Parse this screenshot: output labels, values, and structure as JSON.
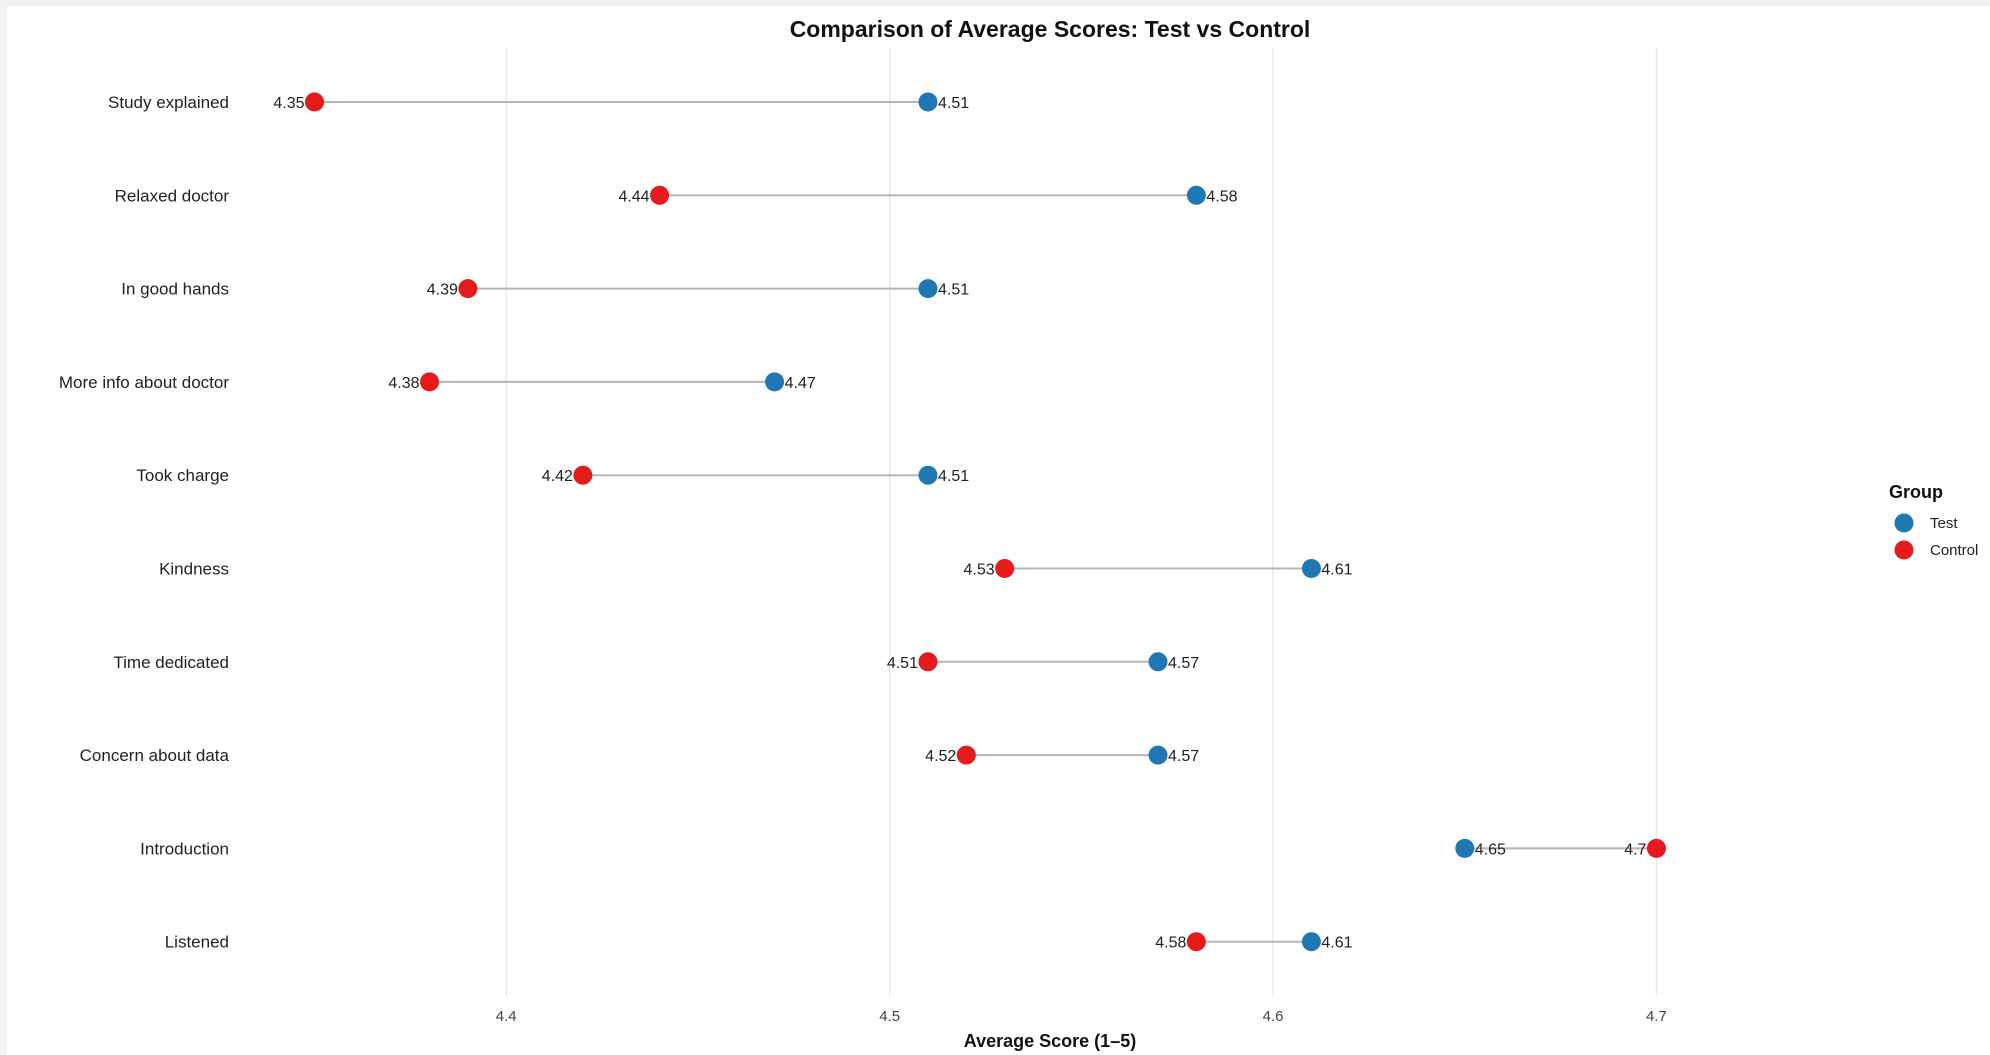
{
  "chart_data": {
    "type": "dumbbell",
    "title": "Comparison of Average Scores: Test vs Control",
    "xlabel": "Average Score (1–5)",
    "ylabel": "",
    "xlim": [
      4.335,
      4.745
    ],
    "x_ticks": [
      4.4,
      4.5,
      4.6,
      4.7
    ],
    "x_tick_labels": [
      "4.4",
      "4.5",
      "4.6",
      "4.7"
    ],
    "grid": true,
    "legend": {
      "title": "Group",
      "position": "right",
      "entries": [
        {
          "name": "Test",
          "color": "#1f77b4"
        },
        {
          "name": "Control",
          "color": "#e41a1c"
        }
      ]
    },
    "categories": [
      "Study explained",
      "Relaxed doctor",
      "In good hands",
      "More info about doctor",
      "Took charge",
      "Kindness",
      "Time dedicated",
      "Concern about data",
      "Introduction",
      "Listened"
    ],
    "series": [
      {
        "name": "Test",
        "color": "#1f77b4",
        "values": [
          4.51,
          4.58,
          4.51,
          4.47,
          4.51,
          4.61,
          4.57,
          4.57,
          4.65,
          4.61
        ],
        "labels": [
          "4.51",
          "4.58",
          "4.51",
          "4.47",
          "4.51",
          "4.61",
          "4.57",
          "4.57",
          "4.65",
          "4.61"
        ]
      },
      {
        "name": "Control",
        "color": "#e41a1c",
        "values": [
          4.35,
          4.44,
          4.39,
          4.38,
          4.42,
          4.53,
          4.51,
          4.52,
          4.7,
          4.58
        ],
        "labels": [
          "4.35",
          "4.44",
          "4.39",
          "4.38",
          "4.42",
          "4.53",
          "4.51",
          "4.52",
          "4.7",
          "4.58"
        ]
      }
    ]
  }
}
